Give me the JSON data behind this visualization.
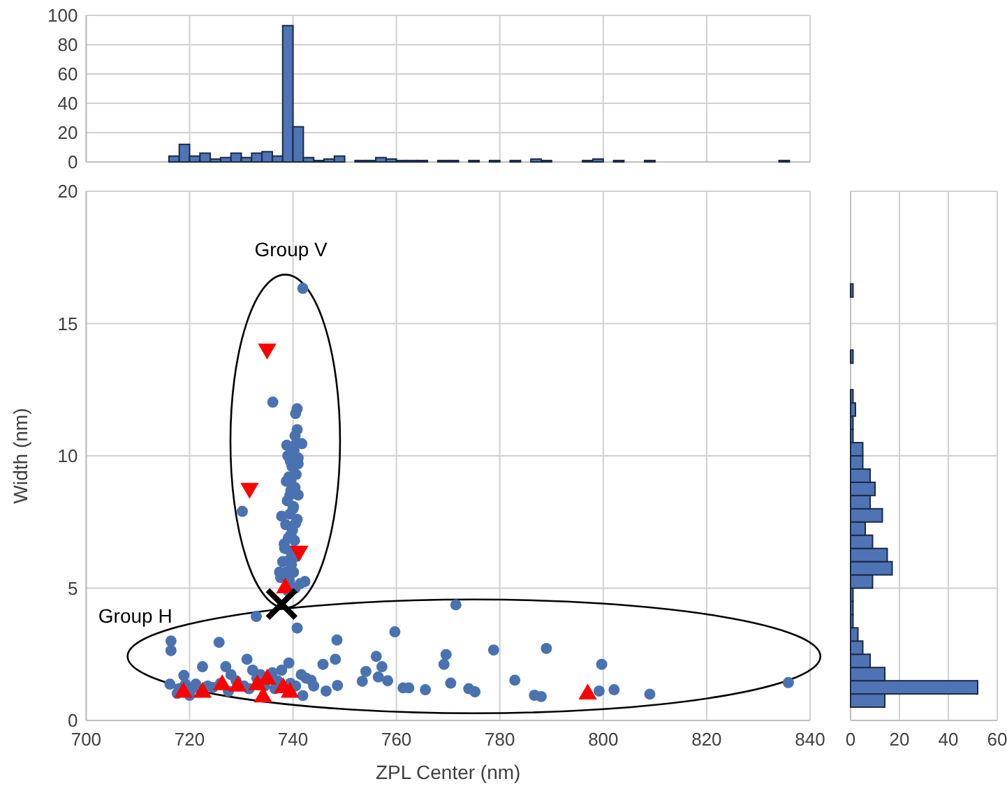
{
  "chart_data": [
    {
      "type": "histogram",
      "bins": [
        716,
        718,
        720,
        722,
        724,
        726,
        728,
        730,
        732,
        734,
        736,
        738,
        740,
        742,
        744,
        746,
        748,
        750,
        752,
        754,
        756,
        758,
        760,
        762,
        764,
        766,
        768,
        770,
        772,
        774,
        776,
        778,
        780,
        782,
        784,
        786,
        788,
        790,
        792,
        794,
        796,
        798,
        800,
        802,
        804,
        806,
        808,
        810,
        812,
        814,
        816,
        818,
        820,
        822,
        824,
        826,
        828,
        830,
        832,
        834,
        836
      ],
      "values": [
        4,
        12,
        4,
        6,
        2,
        3,
        6,
        3,
        6,
        7,
        4,
        93,
        24,
        3,
        1,
        2,
        4,
        0,
        1,
        1,
        3,
        2,
        1,
        1,
        1,
        0,
        1,
        1,
        0,
        1,
        0,
        1,
        0,
        1,
        0,
        2,
        1,
        0,
        0,
        0,
        1,
        2,
        0,
        1,
        0,
        0,
        1,
        0,
        0,
        0,
        0,
        0,
        0,
        0,
        0,
        0,
        0,
        0,
        0,
        1
      ],
      "color": "#4f74b5",
      "xlim": [
        700,
        840
      ],
      "ylim": [
        0,
        100
      ],
      "xticks": [
        700,
        720,
        740,
        760,
        780,
        800,
        820,
        840
      ],
      "yticks": [
        0,
        20,
        40,
        60,
        80,
        100
      ],
      "grid": true,
      "tick_labels": "y"
    },
    {
      "type": "scatter",
      "xlabel": "ZPL Center (nm)",
      "ylabel": "Width (nm)",
      "xlim": [
        700,
        840
      ],
      "ylim": [
        0,
        20
      ],
      "xticks": [
        700,
        720,
        740,
        760,
        780,
        800,
        820,
        840
      ],
      "yticks": [
        0,
        5,
        10,
        15,
        20
      ],
      "grid": true,
      "annotations": [
        "Group V",
        "Group H"
      ],
      "series": [
        {
          "type": "scatter",
          "color": "#4a72b0",
          "marker": "circle",
          "x": [
            716.4,
            716.4,
            716.2,
            717.6,
            718.9,
            719.2,
            721.2,
            722.5,
            725.7,
            727,
            728,
            731.1,
            732.2,
            732.9,
            733.7,
            737.8,
            739.2,
            740.8,
            741.6,
            741.9,
            743.5,
            745.8,
            746.4,
            748.2,
            748.5,
            748.6,
            753.4,
            754.1,
            756.1,
            757.2,
            756.5,
            758.3,
            759.7,
            761.3,
            762.4,
            765.6,
            769.2,
            769.6,
            770.5,
            771.5,
            774,
            775.2,
            778.8,
            782.9,
            786.7,
            788,
            789,
            799.2,
            799.7,
            802.1,
            809,
            835.8,
            741.9,
            736.1,
            740.8,
            740.5,
            740.8,
            740.4,
            741.7,
            739.0,
            741,
            739.6,
            738.7,
            741,
            739.4,
            740.1,
            737.8,
            740.5,
            730.2,
            739.6,
            738.3,
            739.2,
            738.7,
            737.4,
            742.3,
            741.4,
            739.5,
            740.2,
            739.8,
            740.6,
            739.2,
            740.4,
            739.6,
            738.9,
            740.0,
            739.4,
            740.8,
            738.6,
            739.9,
            739.1,
            740.3,
            738.4,
            739.5,
            740.6,
            738.0,
            739.7,
            740.1,
            737.6,
            739.3,
            740.4,
            739.0,
            741.0,
            738.8,
            740.7,
            720.5,
            723.5,
            724.5,
            726,
            727.5,
            729,
            730.5,
            731.5,
            733,
            734.5,
            736,
            737,
            739.5,
            740.5,
            742.5,
            744,
            736.5,
            720,
            718
          ],
          "values": [
            3.0,
            2.64,
            1.37,
            1.02,
            1.7,
            1.37,
            1.37,
            2.03,
            2.95,
            2.03,
            1.73,
            2.31,
            1.9,
            3.93,
            1.73,
            1.9,
            2.17,
            3.49,
            1.73,
            0.94,
            1.52,
            2.12,
            1.11,
            2.31,
            3.04,
            1.32,
            1.48,
            1.85,
            2.42,
            2.03,
            1.64,
            1.5,
            3.35,
            1.23,
            1.23,
            1.16,
            2.12,
            2.49,
            1.41,
            4.37,
            1.2,
            1.08,
            2.66,
            1.52,
            0.95,
            0.9,
            2.72,
            1.11,
            2.12,
            1.16,
            0.99,
            1.43,
            16.33,
            12.03,
            11.78,
            11.6,
            10.99,
            10.76,
            10.46,
            10.0,
            9.92,
            9.04,
            9.04,
            8.52,
            8.52,
            8.08,
            7.72,
            7.45,
            7.9,
            7.02,
            6.67,
            6.05,
            5.61,
            5.61,
            5.25,
            5.17,
            9.8,
            10.2,
            9.6,
            9.3,
            9.2,
            8.8,
            8.7,
            8.3,
            8.0,
            7.8,
            7.6,
            7.4,
            7.2,
            6.9,
            6.8,
            6.5,
            6.4,
            6.2,
            6.0,
            5.9,
            5.6,
            5.4,
            5.3,
            5.0,
            4.9,
            9.7,
            10.4,
            10.5,
            1.2,
            1.3,
            1.25,
            1.4,
            1.1,
            1.5,
            1.3,
            1.2,
            1.6,
            1.3,
            1.8,
            1.5,
            1.4,
            1.3,
            1.6,
            1.3,
            1.2,
            0.95,
            1.2
          ]
        },
        {
          "type": "scatter",
          "color": "#ff0000",
          "marker": "triangle",
          "x": [
            718.8,
            722.5,
            726.3,
            729.3,
            733.1,
            734.2,
            735,
            738.1,
            739.4,
            797,
            738.5
          ],
          "values": [
            1.06,
            1.06,
            1.34,
            1.29,
            1.34,
            0.88,
            1.55,
            1.23,
            1.06,
            0.99,
            5.0
          ]
        },
        {
          "type": "scatter",
          "color": "#ff0000",
          "marker": "triangle-down",
          "x": [
            735,
            731.6,
            741.2
          ],
          "values": [
            14.04,
            8.78,
            6.4
          ]
        },
        {
          "type": "scatter",
          "color": "#000000",
          "marker": "cross",
          "x": [
            737.8
          ],
          "values": [
            4.4
          ]
        }
      ]
    },
    {
      "type": "histogram",
      "orientation": "horizontal",
      "bins": [
        0.5,
        1,
        1.5,
        2,
        2.5,
        3,
        3.5,
        4,
        4.5,
        5,
        5.5,
        6,
        6.5,
        7,
        7.5,
        8,
        8.5,
        9,
        9.5,
        10,
        10.5,
        11,
        11.5,
        12,
        12.5,
        13,
        13.5,
        14,
        14.5,
        15,
        15.5,
        16,
        16.5
      ],
      "values": [
        14,
        52,
        14,
        8,
        5,
        3,
        1,
        1,
        1,
        9,
        17,
        15,
        9,
        6,
        13,
        8,
        10,
        8,
        5,
        5,
        1,
        1,
        2,
        1,
        0,
        0,
        1,
        0,
        0,
        0,
        0,
        1
      ],
      "color": "#4f74b5",
      "xlim": [
        0,
        60
      ],
      "ylim": [
        0,
        20
      ],
      "xticks": [
        0,
        20,
        40,
        60
      ],
      "yticks": [
        0,
        5,
        10,
        15,
        20
      ],
      "grid": true,
      "tick_labels": "x"
    }
  ]
}
